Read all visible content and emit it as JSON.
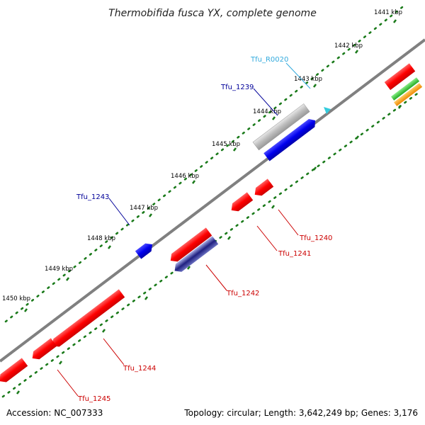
{
  "title": "Thermobifida fusca YX, complete genome",
  "accession": "Accession: NC_007333",
  "summary": "Topology: circular; Length: 3,642,249 bp; Genes: 3,176",
  "kbp_ticks": [
    "1441 kbp",
    "1442 kbp",
    "1443 kbp",
    "1444 kbp",
    "1445 kbp",
    "1446 kbp",
    "1447 kbp",
    "1448 kbp",
    "1449 kbp",
    "1450 kbp"
  ],
  "gene_labels": {
    "tfu_r0020": "Tfu_R0020",
    "tfu_1239": "Tfu_1239",
    "tfu_1243": "Tfu_1243",
    "tfu_1240": "Tfu_1240",
    "tfu_1241": "Tfu_1241",
    "tfu_1242": "Tfu_1242",
    "tfu_1244": "Tfu_1244",
    "tfu_1245": "Tfu_1245"
  },
  "colors": {
    "backbone": "#808080",
    "scale_dots": "#1a7a1a",
    "cds_red": "#ff0000",
    "cds_blue": "#0000ee",
    "gene_grey": "#bbbbbb",
    "rna": "#33ccdd",
    "green": "#33cc33",
    "orange": "#ff9900",
    "label_blue": "#000099",
    "label_red": "#cc0000",
    "label_cyan": "#33aadd"
  }
}
